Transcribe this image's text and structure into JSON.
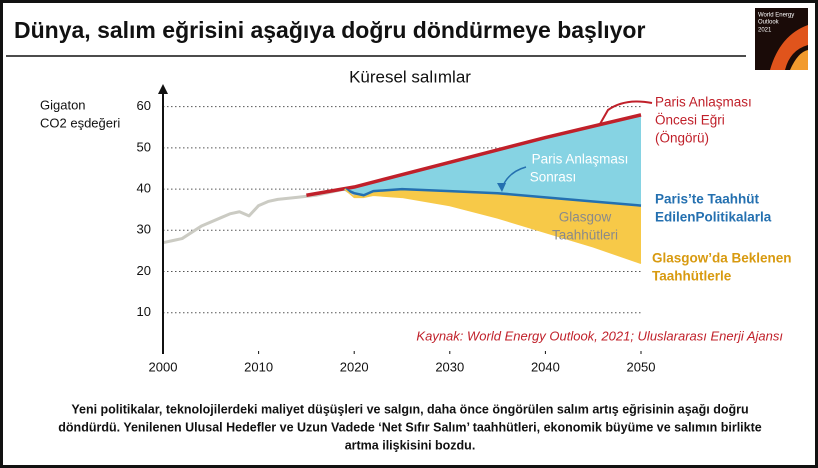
{
  "header": {
    "title": "Dünya, salım eğrisini aşağıya doğru döndürmeye başlıyor"
  },
  "cover": {
    "lines": [
      "World Energy",
      "Outlook",
      "2021"
    ]
  },
  "chart_data": {
    "type": "line",
    "title": "Küresel salımlar",
    "ylabel": [
      "Gigaton",
      "CO2 eşdeğeri"
    ],
    "xlim": [
      2000,
      2050
    ],
    "xticks": [
      2000,
      2010,
      2020,
      2030,
      2040,
      2050
    ],
    "ylim": [
      0,
      65
    ],
    "yticks": [
      10,
      20,
      30,
      40,
      50,
      60
    ],
    "grid": true,
    "series": [
      {
        "color": "#cbcbc3",
        "x": [
          2000,
          2001,
          2002,
          2004,
          2006,
          2007,
          2008,
          2009,
          2010,
          2011,
          2012,
          2014,
          2016,
          2018,
          2019,
          2020
        ],
        "values": [
          27,
          27.5,
          28,
          31,
          33,
          34,
          34.5,
          33.5,
          36,
          37,
          37.5,
          38,
          38.5,
          39.5,
          40,
          38.5
        ]
      },
      {
        "color": "#c0202a",
        "fill": "#86d3e3",
        "x": [
          2015,
          2020,
          2030,
          2040,
          2050
        ],
        "values": [
          38.5,
          40.5,
          46.5,
          52.5,
          58
        ]
      },
      {
        "color": "#2470b0",
        "fill": "#f7c948",
        "x": [
          2019,
          2020,
          2021,
          2022,
          2025,
          2030,
          2035,
          2040,
          2045,
          2050
        ],
        "values": [
          40,
          39,
          38.5,
          39.5,
          40,
          39.5,
          39,
          38,
          37,
          36
        ]
      },
      {
        "color": "#f7c948",
        "x": [
          2019,
          2020,
          2021,
          2022,
          2025,
          2030,
          2035,
          2040,
          2045,
          2050
        ],
        "values": [
          40,
          38,
          38,
          38.5,
          38,
          36,
          33,
          29.5,
          26,
          22
        ]
      }
    ],
    "annotations": [
      {
        "lines": [
          "Paris Anlaşması",
          "Öncesi Eğri",
          "(Öngörü)"
        ]
      },
      {
        "lines": [
          "Paris Anlaşması",
          "Sonrası"
        ]
      },
      {
        "lines": [
          "Paris’te Taahhüt",
          "EdilenPolitikalarla"
        ]
      },
      {
        "lines": [
          "Glasgow",
          "Taahhütleri"
        ]
      },
      {
        "lines": [
          "Glasgow’da Beklenen",
          "Taahhütlerle"
        ]
      }
    ],
    "source": "Kaynak: World Energy Outlook, 2021; Uluslararası Enerji Ajansı"
  },
  "footer": {
    "lines": [
      "Yeni politikalar, teknolojilerdeki maliyet düşüşleri ve salgın, daha önce öngörülen salım artış eğrisinin aşağı doğru",
      "döndürdü. Yenilenen Ulusal Hedefler ve Uzun Vadede ‘Net Sıfır Salım’ taahhütleri, ekonomik büyüme ve salımın birlikte",
      "artma ilişkisini bozdu."
    ]
  }
}
